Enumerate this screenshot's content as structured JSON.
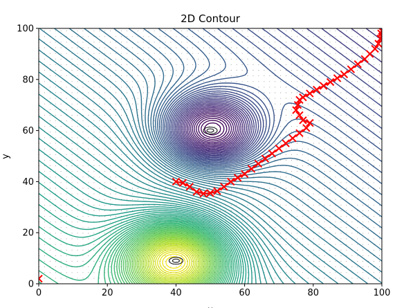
{
  "chart_data": {
    "type": "contour",
    "title": "2D Contour",
    "xlabel": "x",
    "ylabel": "y",
    "xlim": [
      0,
      100
    ],
    "ylim": [
      0,
      100
    ],
    "xticks": [
      0,
      20,
      40,
      60,
      80,
      100
    ],
    "yticks": [
      0,
      20,
      40,
      60,
      80,
      100
    ],
    "grid": false,
    "colormap": "viridis",
    "field_centers": [
      {
        "x": 40,
        "y": 9,
        "kind": "maximum"
      },
      {
        "x": 50,
        "y": 60,
        "kind": "minimum"
      }
    ],
    "marker_color": "#ff0000",
    "marker_symbol": "x",
    "path": [
      [
        40,
        40
      ],
      [
        42,
        39.5
      ],
      [
        44,
        38
      ],
      [
        46,
        36
      ],
      [
        48,
        35.3
      ],
      [
        50,
        35.5
      ],
      [
        52,
        36.3
      ],
      [
        54,
        38
      ],
      [
        56,
        40
      ],
      [
        58,
        41.5
      ],
      [
        60,
        43
      ],
      [
        62,
        45
      ],
      [
        64,
        47
      ],
      [
        66,
        49
      ],
      [
        68,
        51
      ],
      [
        70,
        53
      ],
      [
        72,
        55
      ],
      [
        74,
        57
      ],
      [
        76,
        59
      ],
      [
        78,
        61
      ],
      [
        79,
        63
      ],
      [
        77,
        64
      ],
      [
        76,
        66
      ],
      [
        75,
        68
      ],
      [
        75.5,
        70
      ],
      [
        76,
        72
      ],
      [
        77,
        73
      ],
      [
        79,
        74.5
      ],
      [
        81,
        76
      ],
      [
        83,
        77.5
      ],
      [
        85,
        79
      ],
      [
        87,
        80.5
      ],
      [
        89,
        82
      ],
      [
        91,
        84
      ],
      [
        93,
        86
      ],
      [
        95,
        88
      ],
      [
        96.5,
        90
      ],
      [
        98,
        92
      ],
      [
        99,
        94
      ],
      [
        99.6,
        96
      ],
      [
        99.8,
        98
      ],
      [
        100,
        99
      ]
    ],
    "start_marker": [
      0,
      2
    ]
  }
}
